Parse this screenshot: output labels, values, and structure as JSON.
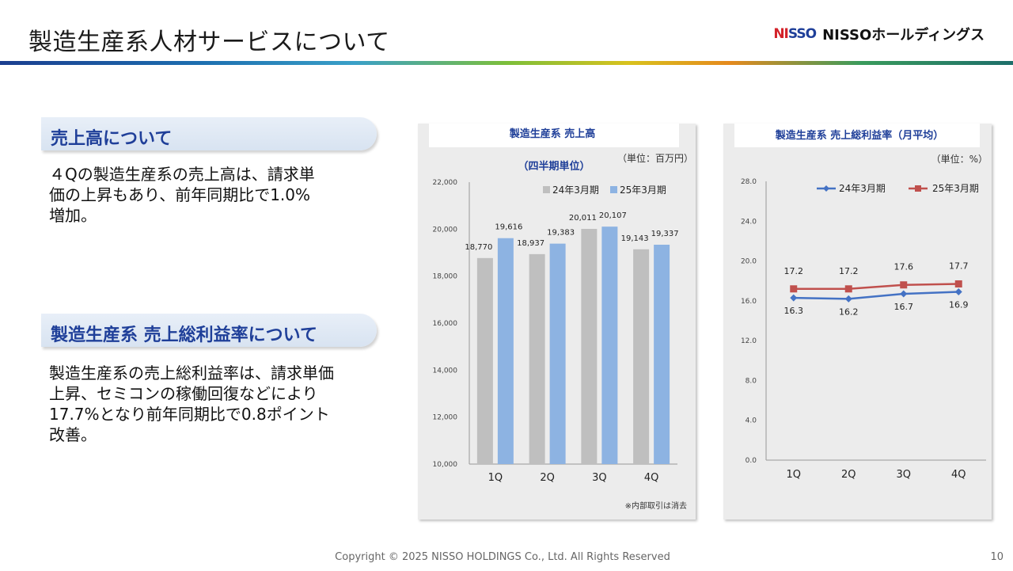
{
  "header": {
    "title": "製造生産系人材サービスについて",
    "logo_mark_a": "NI",
    "logo_mark_b": "SSO",
    "logo_text": "NISSOホールディングス"
  },
  "sections": [
    {
      "heading": "売上高について",
      "lines": [
        "４Qの製造生産系の売上高は、請求単",
        "価の上昇もあり、前年同期比で1.0%",
        "増加。"
      ]
    },
    {
      "heading": "製造生産系 売上総利益率について",
      "lines": [
        "製造生産系の売上総利益率は、請求単価",
        "上昇、セミコンの稼働回復などにより",
        "17.7%となり前年同期比で0.8ポイント",
        "改善。"
      ]
    }
  ],
  "colors": {
    "series_prev_bar": "#bfbfbf",
    "series_curr_bar": "#8db3e2",
    "series_prev_line": "#4472c4",
    "series_curr_line": "#c0504d",
    "heading": "#1f3f99"
  },
  "chart_data": [
    {
      "type": "bar",
      "title": "製造生産系 売上高",
      "subtitle": "（四半期単位）",
      "unit": "（単位：百万円）",
      "note": "※内部取引は消去",
      "categories": [
        "1Q",
        "2Q",
        "3Q",
        "4Q"
      ],
      "series": [
        {
          "name": "24年3月期",
          "values": [
            18770,
            18937,
            20011,
            19143
          ],
          "labels": [
            "18,770",
            "18,937",
            "20,011",
            "19,143"
          ]
        },
        {
          "name": "25年3月期",
          "values": [
            19616,
            19383,
            20107,
            19337
          ],
          "labels": [
            "19,616",
            "19,383",
            "20,107",
            "19,337"
          ]
        }
      ],
      "ylim": [
        10000,
        22000
      ],
      "yticks": [
        "10,000",
        "12,000",
        "14,000",
        "16,000",
        "18,000",
        "20,000",
        "22,000"
      ],
      "legend_position": "top",
      "grid": false
    },
    {
      "type": "line",
      "title": "製造生産系 売上総利益率（月平均）",
      "unit": "（単位：%）",
      "categories": [
        "1Q",
        "2Q",
        "3Q",
        "4Q"
      ],
      "series": [
        {
          "name": "24年3月期",
          "values": [
            16.3,
            16.2,
            16.7,
            16.9
          ],
          "labels": [
            "16.3",
            "16.2",
            "16.7",
            "16.9"
          ]
        },
        {
          "name": "25年3月期",
          "values": [
            17.2,
            17.2,
            17.6,
            17.7
          ],
          "labels": [
            "17.2",
            "17.2",
            "17.6",
            "17.7"
          ]
        }
      ],
      "ylim": [
        0,
        28
      ],
      "yticks": [
        "0.0",
        "4.0",
        "8.0",
        "12.0",
        "16.0",
        "20.0",
        "24.0",
        "28.0"
      ],
      "legend_position": "top",
      "grid": false
    }
  ],
  "footer": {
    "copyright": "Copyright © 2025 NISSO HOLDINGS Co., Ltd. All Rights Reserved",
    "page_number": "10"
  }
}
